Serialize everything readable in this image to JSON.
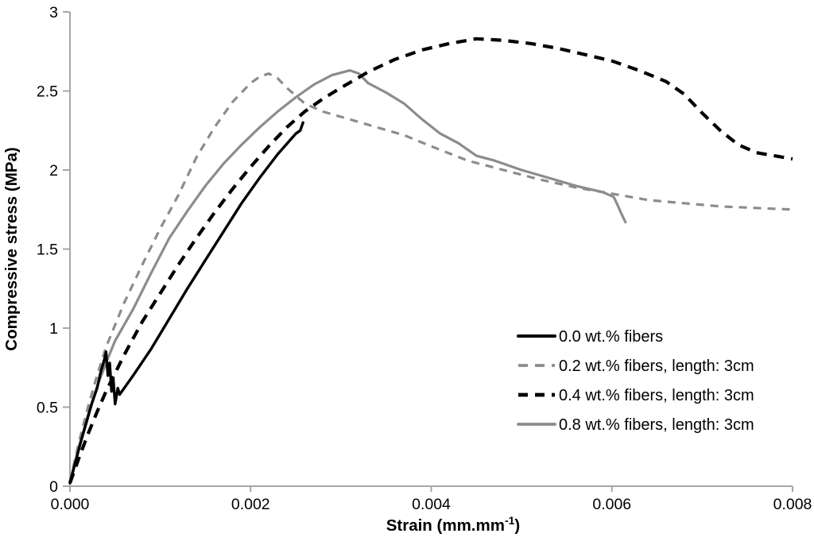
{
  "chart_data": {
    "type": "line",
    "title": "",
    "xlabel_parts": [
      "Strain (mm.mm",
      "-1",
      ")"
    ],
    "ylabel": "Compressive stress (MPa)",
    "xlim": [
      0,
      0.008
    ],
    "ylim": [
      0,
      3
    ],
    "x_tick_values": [
      0,
      0.002,
      0.004,
      0.006,
      0.008
    ],
    "x_tick_labels": [
      "0.000",
      "0.002",
      "0.004",
      "0.006",
      "0.008"
    ],
    "y_tick_values": [
      0,
      0.5,
      1,
      1.5,
      2,
      2.5,
      3
    ],
    "y_tick_labels": [
      "0",
      "0.5",
      "1",
      "1.5",
      "2",
      "2.5",
      "3"
    ],
    "grid": false,
    "legend_position": "inside-lower-right",
    "axis_color": "#a6a6a6",
    "text_color": "#000000",
    "background_color": "#ffffff",
    "series": [
      {
        "name": "0.2 wt.% fibers, length: 3cm",
        "color": "#8c8c8c",
        "style": "dashed",
        "dash": "10 8",
        "width": 3.2,
        "points": [
          [
            0,
            0.03
          ],
          [
            0.0001,
            0.28
          ],
          [
            0.0002,
            0.5
          ],
          [
            0.0003,
            0.7
          ],
          [
            0.0004,
            0.88
          ],
          [
            0.0005,
            1.02
          ],
          [
            0.0006,
            1.16
          ],
          [
            0.0008,
            1.4
          ],
          [
            0.001,
            1.63
          ],
          [
            0.0012,
            1.84
          ],
          [
            0.0014,
            2.08
          ],
          [
            0.0016,
            2.27
          ],
          [
            0.0018,
            2.43
          ],
          [
            0.002,
            2.55
          ],
          [
            0.0021,
            2.59
          ],
          [
            0.0022,
            2.61
          ],
          [
            0.0023,
            2.58
          ],
          [
            0.0024,
            2.52
          ],
          [
            0.0026,
            2.42
          ],
          [
            0.0028,
            2.37
          ],
          [
            0.0031,
            2.32
          ],
          [
            0.0034,
            2.27
          ],
          [
            0.0037,
            2.22
          ],
          [
            0.004,
            2.15
          ],
          [
            0.0044,
            2.06
          ],
          [
            0.0048,
            2.0
          ],
          [
            0.0052,
            1.94
          ],
          [
            0.0056,
            1.89
          ],
          [
            0.006,
            1.85
          ],
          [
            0.0064,
            1.81
          ],
          [
            0.0068,
            1.79
          ],
          [
            0.0072,
            1.77
          ],
          [
            0.0076,
            1.76
          ],
          [
            0.008,
            1.75
          ]
        ]
      },
      {
        "name": "0.8 wt.% fibers, length: 3cm",
        "color": "#8c8c8c",
        "style": "solid",
        "dash": "",
        "width": 3.2,
        "points": [
          [
            0,
            0.03
          ],
          [
            0.0001,
            0.25
          ],
          [
            0.0002,
            0.45
          ],
          [
            0.0003,
            0.63
          ],
          [
            0.0004,
            0.78
          ],
          [
            0.0005,
            0.92
          ],
          [
            0.0007,
            1.12
          ],
          [
            0.0009,
            1.35
          ],
          [
            0.0011,
            1.57
          ],
          [
            0.0013,
            1.74
          ],
          [
            0.0015,
            1.9
          ],
          [
            0.0017,
            2.04
          ],
          [
            0.0019,
            2.16
          ],
          [
            0.0021,
            2.27
          ],
          [
            0.0023,
            2.37
          ],
          [
            0.0025,
            2.46
          ],
          [
            0.0027,
            2.54
          ],
          [
            0.0029,
            2.6
          ],
          [
            0.0031,
            2.63
          ],
          [
            0.0032,
            2.61
          ],
          [
            0.0033,
            2.55
          ],
          [
            0.0035,
            2.49
          ],
          [
            0.0037,
            2.42
          ],
          [
            0.0039,
            2.32
          ],
          [
            0.0041,
            2.23
          ],
          [
            0.0043,
            2.17
          ],
          [
            0.0045,
            2.09
          ],
          [
            0.0047,
            2.06
          ],
          [
            0.005,
            2.0
          ],
          [
            0.0053,
            1.95
          ],
          [
            0.0056,
            1.9
          ],
          [
            0.0059,
            1.86
          ],
          [
            0.00602,
            1.83
          ],
          [
            0.00607,
            1.77
          ],
          [
            0.0061,
            1.73
          ],
          [
            0.00615,
            1.67
          ]
        ]
      },
      {
        "name": "0.4 wt.% fibers, length: 3cm",
        "color": "#000000",
        "style": "dashed",
        "dash": "13 9",
        "width": 4.2,
        "points": [
          [
            0,
            0.02
          ],
          [
            0.0001,
            0.18
          ],
          [
            0.0002,
            0.33
          ],
          [
            0.0003,
            0.47
          ],
          [
            0.0004,
            0.6
          ],
          [
            0.0006,
            0.83
          ],
          [
            0.0008,
            1.04
          ],
          [
            0.001,
            1.22
          ],
          [
            0.0012,
            1.4
          ],
          [
            0.0014,
            1.57
          ],
          [
            0.0016,
            1.73
          ],
          [
            0.0018,
            1.88
          ],
          [
            0.002,
            2.02
          ],
          [
            0.0022,
            2.15
          ],
          [
            0.0024,
            2.27
          ],
          [
            0.0026,
            2.37
          ],
          [
            0.0028,
            2.45
          ],
          [
            0.003,
            2.52
          ],
          [
            0.0033,
            2.62
          ],
          [
            0.0036,
            2.7
          ],
          [
            0.0039,
            2.76
          ],
          [
            0.0042,
            2.8
          ],
          [
            0.0045,
            2.83
          ],
          [
            0.0048,
            2.82
          ],
          [
            0.0051,
            2.8
          ],
          [
            0.0054,
            2.77
          ],
          [
            0.0057,
            2.73
          ],
          [
            0.006,
            2.69
          ],
          [
            0.0063,
            2.63
          ],
          [
            0.0066,
            2.56
          ],
          [
            0.0068,
            2.48
          ],
          [
            0.007,
            2.36
          ],
          [
            0.0072,
            2.25
          ],
          [
            0.0074,
            2.16
          ],
          [
            0.0076,
            2.11
          ],
          [
            0.0078,
            2.09
          ],
          [
            0.008,
            2.07
          ]
        ]
      },
      {
        "name": "0.0 wt.% fibers",
        "color": "#000000",
        "style": "solid",
        "dash": "",
        "width": 3.4,
        "points": [
          [
            0,
            0.02
          ],
          [
            6e-05,
            0.15
          ],
          [
            0.00012,
            0.28
          ],
          [
            0.00018,
            0.4
          ],
          [
            0.00024,
            0.52
          ],
          [
            0.0003,
            0.62
          ],
          [
            0.00034,
            0.72
          ],
          [
            0.00038,
            0.8
          ],
          [
            0.0004,
            0.85
          ],
          [
            0.00042,
            0.7
          ],
          [
            0.00044,
            0.78
          ],
          [
            0.00046,
            0.6
          ],
          [
            0.00048,
            0.68
          ],
          [
            0.0005,
            0.52
          ],
          [
            0.00053,
            0.62
          ],
          [
            0.00055,
            0.58
          ],
          [
            0.0007,
            0.7
          ],
          [
            0.0009,
            0.87
          ],
          [
            0.0011,
            1.06
          ],
          [
            0.0013,
            1.25
          ],
          [
            0.0015,
            1.43
          ],
          [
            0.0017,
            1.61
          ],
          [
            0.0019,
            1.79
          ],
          [
            0.0021,
            1.95
          ],
          [
            0.0023,
            2.1
          ],
          [
            0.0025,
            2.23
          ],
          [
            0.00255,
            2.25
          ],
          [
            0.00258,
            2.3
          ]
        ]
      }
    ],
    "legend_order_names": [
      "0.0 wt.% fibers",
      "0.2 wt.% fibers, length: 3cm",
      "0.4 wt.% fibers, length: 3cm",
      "0.8 wt.% fibers, length: 3cm"
    ],
    "peaks_note": {
      "peak_0.0": [
        0.0026,
        2.3
      ],
      "peak_0.2": [
        0.0022,
        2.61
      ],
      "peak_0.4": [
        0.0045,
        2.83
      ],
      "peak_0.8": [
        0.0031,
        2.63
      ]
    }
  }
}
